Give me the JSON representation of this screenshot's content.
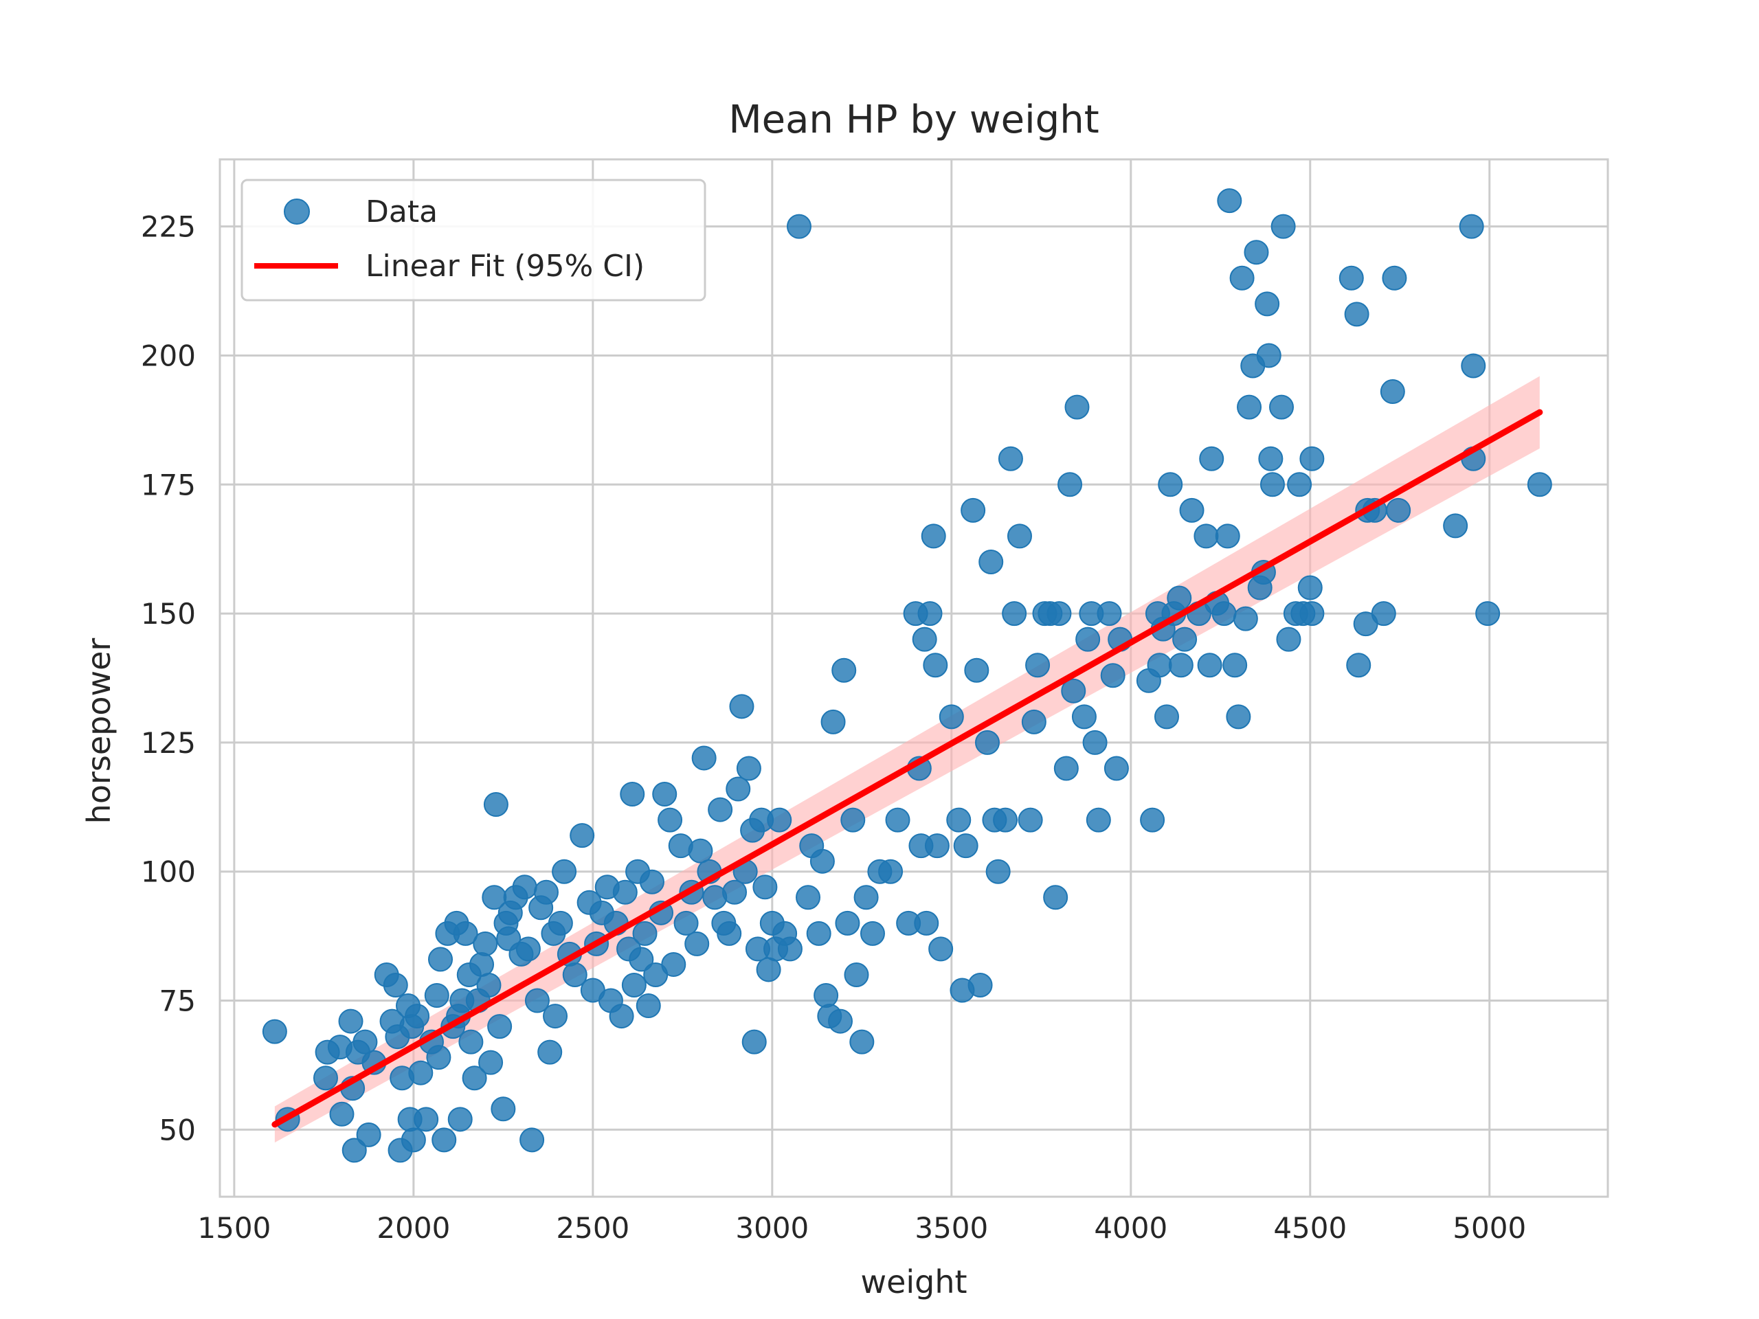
{
  "chart_data": {
    "type": "scatter",
    "title": "Mean HP by weight",
    "xlabel": "weight",
    "ylabel": "horsepower",
    "xlim": [
      1460,
      5330
    ],
    "ylim": [
      37,
      238
    ],
    "xticks": [
      1500,
      2000,
      2500,
      3000,
      3500,
      4000,
      4500,
      5000
    ],
    "yticks": [
      50,
      75,
      100,
      125,
      150,
      175,
      200,
      225
    ],
    "grid": true,
    "legend": {
      "placement": "top-left",
      "entries": [
        {
          "label": "Data",
          "kind": "marker",
          "color": "#1f77b4"
        },
        {
          "label": "Linear Fit (95% CI)",
          "kind": "line",
          "color": "#ff0000"
        }
      ]
    },
    "colors": {
      "points": "#1f77b4",
      "fit": "#ff0000",
      "band": "#ffb3b3"
    },
    "series": [
      {
        "name": "Data",
        "points": [
          [
            1613,
            69
          ],
          [
            1649,
            52
          ],
          [
            1755,
            60
          ],
          [
            1760,
            65
          ],
          [
            1795,
            66
          ],
          [
            1800,
            53
          ],
          [
            1825,
            71
          ],
          [
            1830,
            58
          ],
          [
            1835,
            46
          ],
          [
            1845,
            65
          ],
          [
            1865,
            67
          ],
          [
            1875,
            49
          ],
          [
            1890,
            63
          ],
          [
            1925,
            80
          ],
          [
            1940,
            71
          ],
          [
            1950,
            78
          ],
          [
            1955,
            68
          ],
          [
            1963,
            46
          ],
          [
            1968,
            60
          ],
          [
            1985,
            74
          ],
          [
            1990,
            52
          ],
          [
            1995,
            70
          ],
          [
            2000,
            48
          ],
          [
            2010,
            72
          ],
          [
            2020,
            61
          ],
          [
            2035,
            52
          ],
          [
            2050,
            67
          ],
          [
            2065,
            76
          ],
          [
            2070,
            64
          ],
          [
            2075,
            83
          ],
          [
            2085,
            48
          ],
          [
            2095,
            88
          ],
          [
            2110,
            70
          ],
          [
            2120,
            90
          ],
          [
            2125,
            72
          ],
          [
            2130,
            52
          ],
          [
            2135,
            75
          ],
          [
            2145,
            88
          ],
          [
            2155,
            80
          ],
          [
            2160,
            67
          ],
          [
            2170,
            60
          ],
          [
            2180,
            75
          ],
          [
            2190,
            82
          ],
          [
            2200,
            86
          ],
          [
            2210,
            78
          ],
          [
            2215,
            63
          ],
          [
            2225,
            95
          ],
          [
            2230,
            113
          ],
          [
            2240,
            70
          ],
          [
            2250,
            54
          ],
          [
            2258,
            90
          ],
          [
            2265,
            87
          ],
          [
            2270,
            92
          ],
          [
            2285,
            95
          ],
          [
            2300,
            84
          ],
          [
            2310,
            97
          ],
          [
            2320,
            85
          ],
          [
            2330,
            48
          ],
          [
            2345,
            75
          ],
          [
            2355,
            93
          ],
          [
            2370,
            96
          ],
          [
            2380,
            65
          ],
          [
            2390,
            88
          ],
          [
            2395,
            72
          ],
          [
            2410,
            90
          ],
          [
            2420,
            100
          ],
          [
            2435,
            84
          ],
          [
            2450,
            80
          ],
          [
            2470,
            107
          ],
          [
            2490,
            94
          ],
          [
            2500,
            77
          ],
          [
            2510,
            86
          ],
          [
            2525,
            92
          ],
          [
            2540,
            97
          ],
          [
            2550,
            75
          ],
          [
            2565,
            90
          ],
          [
            2580,
            72
          ],
          [
            2590,
            96
          ],
          [
            2600,
            85
          ],
          [
            2610,
            115
          ],
          [
            2615,
            78
          ],
          [
            2625,
            100
          ],
          [
            2635,
            83
          ],
          [
            2645,
            88
          ],
          [
            2655,
            74
          ],
          [
            2665,
            98
          ],
          [
            2675,
            80
          ],
          [
            2690,
            92
          ],
          [
            2700,
            115
          ],
          [
            2715,
            110
          ],
          [
            2725,
            82
          ],
          [
            2745,
            105
          ],
          [
            2760,
            90
          ],
          [
            2775,
            96
          ],
          [
            2790,
            86
          ],
          [
            2800,
            104
          ],
          [
            2810,
            122
          ],
          [
            2825,
            100
          ],
          [
            2840,
            95
          ],
          [
            2855,
            112
          ],
          [
            2865,
            90
          ],
          [
            2880,
            88
          ],
          [
            2895,
            96
          ],
          [
            2905,
            116
          ],
          [
            2915,
            132
          ],
          [
            2925,
            100
          ],
          [
            2935,
            120
          ],
          [
            2945,
            108
          ],
          [
            2950,
            67
          ],
          [
            2960,
            85
          ],
          [
            2970,
            110
          ],
          [
            2980,
            97
          ],
          [
            2990,
            81
          ],
          [
            3000,
            90
          ],
          [
            3010,
            85
          ],
          [
            3020,
            110
          ],
          [
            3035,
            88
          ],
          [
            3050,
            85
          ],
          [
            3075,
            225
          ],
          [
            3100,
            95
          ],
          [
            3110,
            105
          ],
          [
            3130,
            88
          ],
          [
            3140,
            102
          ],
          [
            3150,
            76
          ],
          [
            3160,
            72
          ],
          [
            3170,
            129
          ],
          [
            3190,
            71
          ],
          [
            3200,
            139
          ],
          [
            3210,
            90
          ],
          [
            3225,
            110
          ],
          [
            3235,
            80
          ],
          [
            3250,
            67
          ],
          [
            3262,
            95
          ],
          [
            3280,
            88
          ],
          [
            3300,
            100
          ],
          [
            3330,
            100
          ],
          [
            3350,
            110
          ],
          [
            3380,
            90
          ],
          [
            3400,
            150
          ],
          [
            3410,
            120
          ],
          [
            3415,
            105
          ],
          [
            3425,
            145
          ],
          [
            3430,
            90
          ],
          [
            3440,
            150
          ],
          [
            3450,
            165
          ],
          [
            3455,
            140
          ],
          [
            3460,
            105
          ],
          [
            3470,
            85
          ],
          [
            3500,
            130
          ],
          [
            3520,
            110
          ],
          [
            3530,
            77
          ],
          [
            3540,
            105
          ],
          [
            3560,
            170
          ],
          [
            3570,
            139
          ],
          [
            3580,
            78
          ],
          [
            3600,
            125
          ],
          [
            3610,
            160
          ],
          [
            3620,
            110
          ],
          [
            3630,
            100
          ],
          [
            3650,
            110
          ],
          [
            3665,
            180
          ],
          [
            3675,
            150
          ],
          [
            3690,
            165
          ],
          [
            3720,
            110
          ],
          [
            3730,
            129
          ],
          [
            3740,
            140
          ],
          [
            3760,
            150
          ],
          [
            3775,
            150
          ],
          [
            3790,
            95
          ],
          [
            3800,
            150
          ],
          [
            3820,
            120
          ],
          [
            3830,
            175
          ],
          [
            3840,
            135
          ],
          [
            3850,
            190
          ],
          [
            3870,
            130
          ],
          [
            3880,
            145
          ],
          [
            3890,
            150
          ],
          [
            3900,
            125
          ],
          [
            3910,
            110
          ],
          [
            3940,
            150
          ],
          [
            3950,
            138
          ],
          [
            3960,
            120
          ],
          [
            3970,
            145
          ],
          [
            4050,
            137
          ],
          [
            4060,
            110
          ],
          [
            4075,
            150
          ],
          [
            4080,
            140
          ],
          [
            4090,
            147
          ],
          [
            4100,
            130
          ],
          [
            4110,
            175
          ],
          [
            4120,
            150
          ],
          [
            4135,
            153
          ],
          [
            4140,
            140
          ],
          [
            4150,
            145
          ],
          [
            4170,
            170
          ],
          [
            4190,
            150
          ],
          [
            4210,
            165
          ],
          [
            4220,
            140
          ],
          [
            4225,
            180
          ],
          [
            4240,
            152
          ],
          [
            4260,
            150
          ],
          [
            4270,
            165
          ],
          [
            4275,
            230
          ],
          [
            4290,
            140
          ],
          [
            4300,
            130
          ],
          [
            4310,
            215
          ],
          [
            4320,
            149
          ],
          [
            4330,
            190
          ],
          [
            4340,
            198
          ],
          [
            4350,
            220
          ],
          [
            4360,
            155
          ],
          [
            4370,
            158
          ],
          [
            4380,
            210
          ],
          [
            4385,
            200
          ],
          [
            4390,
            180
          ],
          [
            4395,
            175
          ],
          [
            4420,
            190
          ],
          [
            4425,
            225
          ],
          [
            4440,
            145
          ],
          [
            4460,
            150
          ],
          [
            4470,
            175
          ],
          [
            4480,
            150
          ],
          [
            4500,
            155
          ],
          [
            4505,
            180
          ],
          [
            4505,
            150
          ],
          [
            4615,
            215
          ],
          [
            4630,
            208
          ],
          [
            4635,
            140
          ],
          [
            4655,
            148
          ],
          [
            4660,
            170
          ],
          [
            4680,
            170
          ],
          [
            4705,
            150
          ],
          [
            4730,
            193
          ],
          [
            4735,
            215
          ],
          [
            4746,
            170
          ],
          [
            4905,
            167
          ],
          [
            4950,
            225
          ],
          [
            4955,
            198
          ],
          [
            4955,
            180
          ],
          [
            4995,
            150
          ],
          [
            5140,
            175
          ]
        ]
      },
      {
        "name": "Linear Fit (95% CI)",
        "x": [
          1613,
          5140
        ],
        "y": [
          51,
          189
        ],
        "ci_lower": [
          47.5,
          182
        ],
        "ci_upper": [
          54.5,
          196
        ]
      }
    ]
  }
}
